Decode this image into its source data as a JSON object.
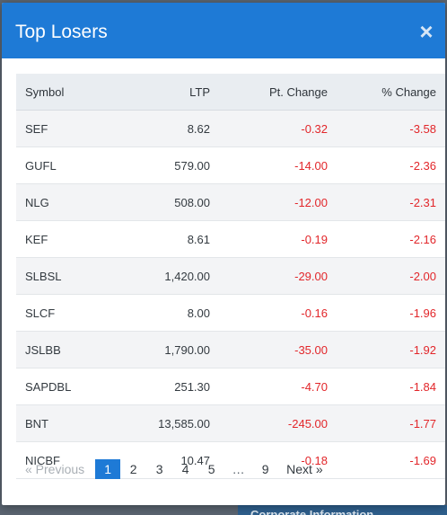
{
  "modal": {
    "title": "Top Losers",
    "close_icon": "×"
  },
  "table": {
    "headers": {
      "symbol": "Symbol",
      "ltp": "LTP",
      "pt_change": "Pt. Change",
      "pct_change": "% Change"
    },
    "rows": [
      {
        "symbol": "SEF",
        "ltp": "8.62",
        "pt_change": "-0.32",
        "pct_change": "-3.58"
      },
      {
        "symbol": "GUFL",
        "ltp": "579.00",
        "pt_change": "-14.00",
        "pct_change": "-2.36"
      },
      {
        "symbol": "NLG",
        "ltp": "508.00",
        "pt_change": "-12.00",
        "pct_change": "-2.31"
      },
      {
        "symbol": "KEF",
        "ltp": "8.61",
        "pt_change": "-0.19",
        "pct_change": "-2.16"
      },
      {
        "symbol": "SLBSL",
        "ltp": "1,420.00",
        "pt_change": "-29.00",
        "pct_change": "-2.00"
      },
      {
        "symbol": "SLCF",
        "ltp": "8.00",
        "pt_change": "-0.16",
        "pct_change": "-1.96"
      },
      {
        "symbol": "JSLBB",
        "ltp": "1,790.00",
        "pt_change": "-35.00",
        "pct_change": "-1.92"
      },
      {
        "symbol": "SAPDBL",
        "ltp": "251.30",
        "pt_change": "-4.70",
        "pct_change": "-1.84"
      },
      {
        "symbol": "BNT",
        "ltp": "13,585.00",
        "pt_change": "-245.00",
        "pct_change": "-1.77"
      },
      {
        "symbol": "NICBF",
        "ltp": "10.47",
        "pt_change": "-0.18",
        "pct_change": "-1.69"
      }
    ]
  },
  "pagination": {
    "previous": "« Previous",
    "pages": [
      "1",
      "2",
      "3",
      "4",
      "5"
    ],
    "ellipsis": "…",
    "last_page": "9",
    "next": "Next »",
    "active_page": "1"
  },
  "background": {
    "corporate_info": "Corporate Information"
  },
  "colors": {
    "header_blue": "#1e7ad6",
    "negative_red": "#e2262a"
  }
}
